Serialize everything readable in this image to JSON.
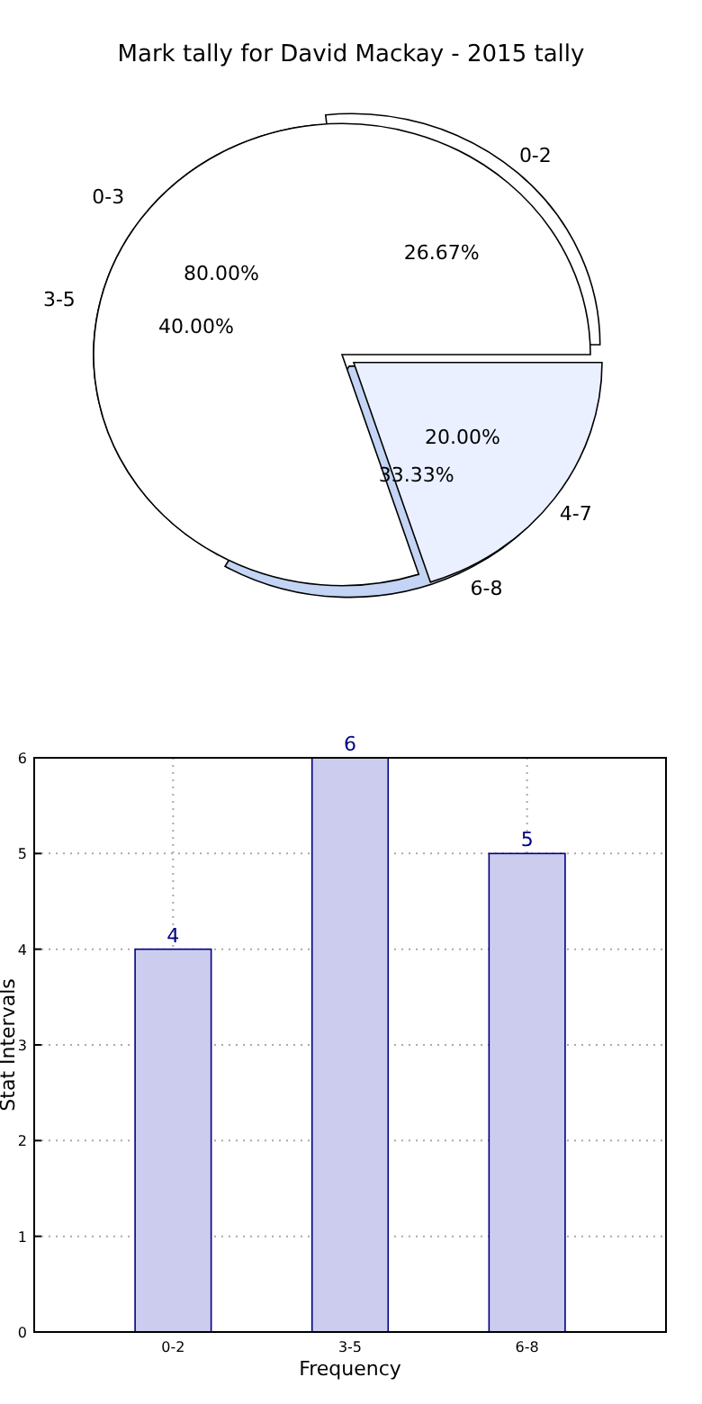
{
  "chart_data": [
    {
      "type": "pie",
      "title": "Mark tally for David Mackay - 2015 tally",
      "categories": [
        "0-2",
        "3-5",
        "6-8"
      ],
      "values": [
        26.67,
        40,
        33.33
      ],
      "colors": [
        "#ffffff",
        "#ffffff",
        "#c4d4f4"
      ],
      "value_labels": [
        "26.67%",
        "40.00%",
        "33.33%"
      ]
    },
    {
      "type": "pie",
      "categories": [
        "0-3",
        "4-7"
      ],
      "values": [
        80,
        20
      ],
      "colors": [
        "#ffffff",
        "#eaf0ff"
      ],
      "value_labels": [
        "80.00%",
        "20.00%"
      ]
    },
    {
      "type": "bar",
      "categories": [
        "0-2",
        "3-5",
        "6-8"
      ],
      "values": [
        4,
        6,
        5
      ],
      "color": "#ccccee",
      "ylim": [
        0,
        6
      ],
      "yticks": [
        0,
        1,
        2,
        3,
        4,
        5,
        6
      ],
      "grid": true,
      "xlabel": "Frequency",
      "ylabel": "Stat Intervals",
      "data_labels": true
    }
  ]
}
